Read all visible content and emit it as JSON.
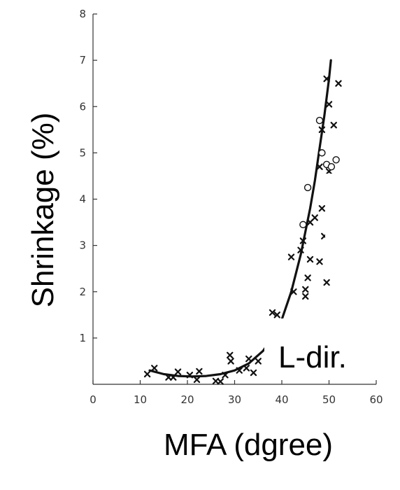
{
  "chart_data": {
    "type": "scatter",
    "xlabel": "MFA (dgree)",
    "ylabel": "Shrinkage (%)",
    "annotation": "L-dir.",
    "xlim": [
      0,
      60
    ],
    "ylim": [
      0,
      8
    ],
    "xticks": [
      0,
      10,
      20,
      30,
      40,
      50,
      60
    ],
    "yticks": [
      1,
      2,
      3,
      4,
      5,
      6,
      7,
      8
    ],
    "grid": false,
    "series": [
      {
        "marker": "x",
        "points": [
          [
            11.5,
            0.22
          ],
          [
            13,
            0.35
          ],
          [
            16,
            0.15
          ],
          [
            17,
            0.15
          ],
          [
            18,
            0.27
          ],
          [
            20.5,
            0.2
          ],
          [
            22,
            0.1
          ],
          [
            22.5,
            0.28
          ],
          [
            26,
            0.07
          ],
          [
            27,
            0.06
          ],
          [
            28,
            0.2
          ],
          [
            29,
            0.63
          ],
          [
            29.2,
            0.5
          ],
          [
            31,
            0.3
          ],
          [
            32.5,
            0.35
          ],
          [
            33,
            0.55
          ],
          [
            34,
            0.25
          ],
          [
            35,
            0.5
          ],
          [
            38,
            1.55
          ],
          [
            39,
            1.5
          ],
          [
            42,
            2.75
          ],
          [
            42.5,
            2.0
          ],
          [
            44,
            2.9
          ],
          [
            44.5,
            3.1
          ],
          [
            45,
            1.9
          ],
          [
            45,
            2.05
          ],
          [
            45.5,
            2.3
          ],
          [
            46,
            3.5
          ],
          [
            46,
            2.7
          ],
          [
            47,
            3.6
          ],
          [
            48,
            2.65
          ],
          [
            48.5,
            3.8
          ],
          [
            49,
            3.2
          ],
          [
            49.5,
            2.2
          ],
          [
            48,
            4.7
          ],
          [
            50,
            4.6
          ],
          [
            49.5,
            6.6
          ],
          [
            50,
            6.05
          ],
          [
            51,
            5.6
          ],
          [
            52,
            6.5
          ],
          [
            48.5,
            5.5
          ]
        ]
      },
      {
        "marker": "o",
        "points": [
          [
            45.5,
            4.25
          ],
          [
            44.5,
            3.45
          ],
          [
            48,
            5.7
          ],
          [
            48.5,
            5.0
          ],
          [
            49.5,
            4.75
          ],
          [
            50.5,
            4.7
          ],
          [
            51.5,
            4.85
          ]
        ]
      },
      {
        "marker": "curve",
        "points": [
          [
            12,
            0.3
          ],
          [
            15,
            0.22
          ],
          [
            18,
            0.18
          ],
          [
            21,
            0.17
          ],
          [
            24,
            0.18
          ],
          [
            27,
            0.22
          ],
          [
            30,
            0.3
          ],
          [
            33,
            0.45
          ],
          [
            36,
            0.72
          ],
          [
            38,
            1.0
          ],
          [
            40,
            1.4
          ],
          [
            42,
            2.0
          ],
          [
            44,
            2.8
          ],
          [
            46,
            3.8
          ],
          [
            47,
            4.4
          ],
          [
            48,
            5.1
          ],
          [
            49,
            5.8
          ],
          [
            50,
            6.6
          ],
          [
            50.4,
            7.0
          ]
        ]
      }
    ]
  }
}
